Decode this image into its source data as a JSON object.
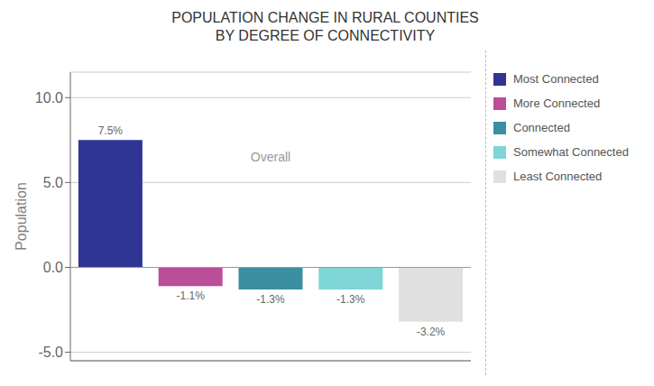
{
  "chart_data": {
    "type": "bar",
    "title": "POPULATION CHANGE IN RURAL COUNTIES\nBY DEGREE OF CONNECTIVITY",
    "y_label": "Population",
    "categories": [
      "Most Connected",
      "More Connected",
      "Connected",
      "Somewhat Connected",
      "Least Connected"
    ],
    "values": [
      7.5,
      -1.1,
      -1.3,
      -1.3,
      -3.2
    ],
    "value_labels": [
      "7.5%",
      "-1.1%",
      "-1.3%",
      "-1.3%",
      "-3.2%"
    ],
    "colors": [
      "#2e3592",
      "#bb4d99",
      "#3a8fa0",
      "#7dd5d5",
      "#e0e0e0"
    ],
    "annotations": [
      "Overall"
    ],
    "ylim": [
      -5.5,
      11.5
    ],
    "yticks": [
      {
        "value": -5.0,
        "label": "-5.0"
      },
      {
        "value": 0.0,
        "label": "0.0"
      },
      {
        "value": 5.0,
        "label": "5.0"
      },
      {
        "value": 10.0,
        "label": "10.0"
      }
    ],
    "grid": true,
    "legend": "upper right",
    "data_labels": true,
    "tick_labels": "y"
  }
}
